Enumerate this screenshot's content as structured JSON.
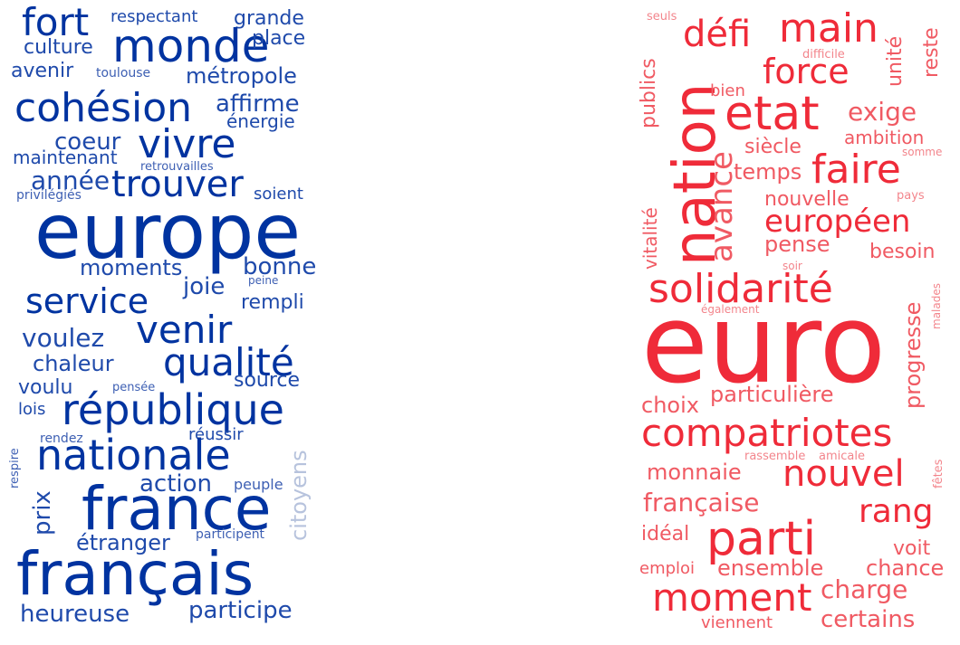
{
  "colors": {
    "left": "#0033a0",
    "right": "#ef2b39",
    "background": "#ffffff"
  },
  "left_cloud": {
    "words": [
      "fort",
      "respectant",
      "grande",
      "culture",
      "monde",
      "place",
      "avenir",
      "toulouse",
      "métropole",
      "cohésion",
      "affirme",
      "énergie",
      "coeur",
      "vivre",
      "maintenant",
      "retrouvailles",
      "année",
      "trouver",
      "privilégiés",
      "soient",
      "europe",
      "moments",
      "bonne",
      "joie",
      "peine",
      "service",
      "rempli",
      "venir",
      "voulez",
      "qualité",
      "chaleur",
      "source",
      "voulu",
      "pensée",
      "lois",
      "république",
      "rendez",
      "réussir",
      "respire",
      "nationale",
      "citoyens",
      "action",
      "peuple",
      "prix",
      "france",
      "étranger",
      "participent",
      "français",
      "heureuse",
      "participe"
    ]
  },
  "right_cloud": {
    "words": [
      "seuls",
      "défi",
      "main",
      "unité",
      "reste",
      "difficile",
      "publics",
      "nation",
      "force",
      "bien",
      "etat",
      "exige",
      "avance",
      "siècle",
      "ambition",
      "somme",
      "vitalité",
      "temps",
      "faire",
      "nouvelle",
      "pays",
      "européen",
      "pense",
      "besoin",
      "soir",
      "solidarité",
      "progresse",
      "également",
      "malades",
      "euro",
      "choix",
      "particulière",
      "compatriotes",
      "rassemble",
      "amicale",
      "monnaie",
      "nouvel",
      "fêtes",
      "française",
      "rang",
      "idéal",
      "parti",
      "voit",
      "emploi",
      "ensemble",
      "chance",
      "moment",
      "charge",
      "viennent",
      "certains"
    ]
  }
}
